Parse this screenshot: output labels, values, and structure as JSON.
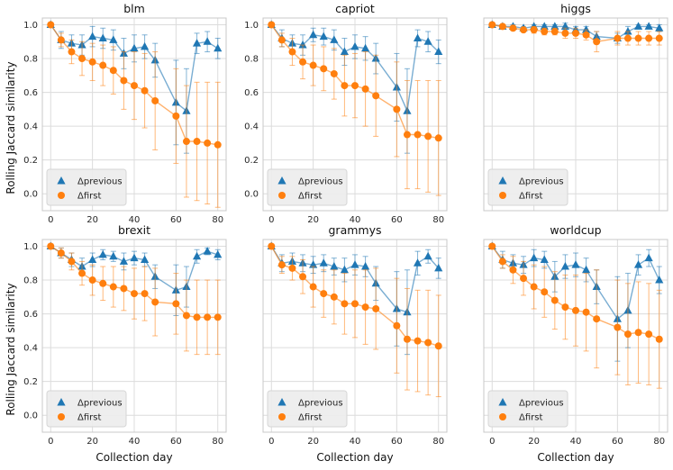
{
  "figure": {
    "xlabel": "Collection day",
    "ylabel": "Rolling Jaccard similarity",
    "colors": {
      "previous": "#1f77b4",
      "first": "#ff7f0e",
      "grid": "#dcdcdc",
      "spine": "#c8c8c8",
      "legend_bg": "#ececec"
    }
  },
  "chart_data": [
    {
      "type": "line",
      "title": "blm",
      "x": [
        0,
        5,
        10,
        15,
        20,
        25,
        30,
        35,
        40,
        45,
        50,
        60,
        65,
        70,
        75,
        80
      ],
      "xlim": [
        -4,
        84
      ],
      "ylim": [
        -0.1,
        1.04
      ],
      "xticks": [
        "0",
        "20",
        "40",
        "60",
        "80"
      ],
      "yticks": [
        "0.0",
        "0.2",
        "0.4",
        "0.6",
        "0.8",
        "1.0"
      ],
      "legend": "bottom-left",
      "series": [
        {
          "name": "Δprevious",
          "marker": "triangle",
          "values": [
            1.0,
            0.91,
            0.89,
            0.88,
            0.93,
            0.92,
            0.91,
            0.83,
            0.86,
            0.87,
            0.79,
            0.54,
            0.49,
            0.89,
            0.9,
            0.86
          ],
          "errors": [
            0.01,
            0.05,
            0.05,
            0.06,
            0.06,
            0.06,
            0.06,
            0.09,
            0.08,
            0.07,
            0.1,
            0.25,
            0.25,
            0.06,
            0.06,
            0.06
          ]
        },
        {
          "name": "Δfirst",
          "marker": "circle",
          "values": [
            1.0,
            0.91,
            0.84,
            0.8,
            0.78,
            0.76,
            0.73,
            0.67,
            0.64,
            0.61,
            0.55,
            0.46,
            0.31,
            0.31,
            0.3,
            0.29
          ],
          "errors": [
            0.01,
            0.04,
            0.07,
            0.1,
            0.11,
            0.12,
            0.14,
            0.17,
            0.2,
            0.22,
            0.29,
            0.28,
            0.33,
            0.35,
            0.36,
            0.37
          ]
        }
      ]
    },
    {
      "type": "line",
      "title": "capriot",
      "x": [
        0,
        5,
        10,
        15,
        20,
        25,
        30,
        35,
        40,
        45,
        50,
        60,
        65,
        70,
        75,
        80
      ],
      "xlim": [
        -4,
        84
      ],
      "ylim": [
        -0.1,
        1.04
      ],
      "xticks": [
        "0",
        "20",
        "40",
        "60",
        "80"
      ],
      "yticks": [
        "0.0",
        "0.2",
        "0.4",
        "0.6",
        "0.8",
        "1.0"
      ],
      "legend": "bottom-left",
      "series": [
        {
          "name": "Δprevious",
          "marker": "triangle",
          "values": [
            1.0,
            0.92,
            0.89,
            0.88,
            0.94,
            0.93,
            0.91,
            0.84,
            0.87,
            0.86,
            0.8,
            0.63,
            0.49,
            0.92,
            0.9,
            0.84
          ],
          "errors": [
            0.01,
            0.05,
            0.05,
            0.06,
            0.04,
            0.05,
            0.06,
            0.08,
            0.07,
            0.07,
            0.09,
            0.2,
            0.25,
            0.05,
            0.06,
            0.07
          ]
        },
        {
          "name": "Δfirst",
          "marker": "circle",
          "values": [
            1.0,
            0.91,
            0.84,
            0.78,
            0.76,
            0.74,
            0.71,
            0.64,
            0.64,
            0.62,
            0.58,
            0.5,
            0.35,
            0.35,
            0.34,
            0.33
          ],
          "errors": [
            0.01,
            0.04,
            0.08,
            0.1,
            0.12,
            0.13,
            0.15,
            0.18,
            0.19,
            0.22,
            0.24,
            0.28,
            0.32,
            0.32,
            0.33,
            0.34
          ]
        }
      ]
    },
    {
      "type": "line",
      "title": "higgs",
      "x": [
        0,
        5,
        10,
        15,
        20,
        25,
        30,
        35,
        40,
        45,
        50,
        60,
        65,
        70,
        75,
        80
      ],
      "xlim": [
        -4,
        84
      ],
      "ylim": [
        -0.1,
        1.04
      ],
      "xticks": [],
      "yticks": [],
      "legend": "bottom-left",
      "series": [
        {
          "name": "Δprevious",
          "marker": "triangle",
          "values": [
            1.0,
            0.99,
            0.99,
            0.98,
            0.99,
            0.99,
            0.99,
            0.99,
            0.97,
            0.97,
            0.93,
            0.92,
            0.96,
            0.99,
            0.99,
            0.98
          ],
          "errors": [
            0.01,
            0.01,
            0.01,
            0.01,
            0.01,
            0.01,
            0.01,
            0.02,
            0.02,
            0.02,
            0.03,
            0.03,
            0.03,
            0.01,
            0.01,
            0.02
          ]
        },
        {
          "name": "Δfirst",
          "marker": "circle",
          "values": [
            1.0,
            0.99,
            0.98,
            0.97,
            0.97,
            0.96,
            0.96,
            0.95,
            0.95,
            0.94,
            0.9,
            0.92,
            0.92,
            0.92,
            0.92,
            0.92
          ],
          "errors": [
            0.01,
            0.01,
            0.01,
            0.01,
            0.02,
            0.02,
            0.02,
            0.03,
            0.03,
            0.03,
            0.06,
            0.04,
            0.04,
            0.04,
            0.04,
            0.04
          ]
        }
      ]
    },
    {
      "type": "line",
      "title": "brexit",
      "x": [
        0,
        5,
        10,
        15,
        20,
        25,
        30,
        35,
        40,
        45,
        50,
        60,
        65,
        70,
        75,
        80
      ],
      "xlim": [
        -4,
        84
      ],
      "ylim": [
        -0.1,
        1.04
      ],
      "xticks": [
        "0",
        "20",
        "40",
        "60",
        "80"
      ],
      "yticks": [
        "0.0",
        "0.2",
        "0.4",
        "0.6",
        "0.8",
        "1.0"
      ],
      "legend": "bottom-left",
      "series": [
        {
          "name": "Δprevious",
          "marker": "triangle",
          "values": [
            1.0,
            0.96,
            0.92,
            0.88,
            0.92,
            0.95,
            0.94,
            0.91,
            0.93,
            0.92,
            0.82,
            0.74,
            0.76,
            0.94,
            0.97,
            0.95
          ],
          "errors": [
            0.01,
            0.03,
            0.04,
            0.05,
            0.04,
            0.03,
            0.03,
            0.05,
            0.04,
            0.04,
            0.07,
            0.15,
            0.12,
            0.04,
            0.02,
            0.03
          ]
        },
        {
          "name": "Δfirst",
          "marker": "circle",
          "values": [
            1.0,
            0.96,
            0.91,
            0.84,
            0.8,
            0.78,
            0.76,
            0.75,
            0.72,
            0.72,
            0.67,
            0.66,
            0.59,
            0.58,
            0.58,
            0.58
          ],
          "errors": [
            0.01,
            0.03,
            0.05,
            0.07,
            0.09,
            0.1,
            0.12,
            0.13,
            0.15,
            0.16,
            0.2,
            0.18,
            0.21,
            0.22,
            0.22,
            0.22
          ]
        }
      ]
    },
    {
      "type": "line",
      "title": "grammys",
      "x": [
        0,
        5,
        10,
        15,
        20,
        25,
        30,
        35,
        40,
        45,
        50,
        60,
        65,
        70,
        75,
        80
      ],
      "xlim": [
        -4,
        84
      ],
      "ylim": [
        -0.1,
        1.04
      ],
      "xticks": [
        "0",
        "20",
        "40",
        "60",
        "80"
      ],
      "yticks": [],
      "legend": "bottom-left",
      "series": [
        {
          "name": "Δprevious",
          "marker": "triangle",
          "values": [
            1.0,
            0.9,
            0.91,
            0.9,
            0.89,
            0.9,
            0.88,
            0.86,
            0.89,
            0.88,
            0.78,
            0.63,
            0.61,
            0.9,
            0.94,
            0.87
          ],
          "errors": [
            0.01,
            0.05,
            0.05,
            0.05,
            0.05,
            0.05,
            0.05,
            0.07,
            0.06,
            0.06,
            0.1,
            0.22,
            0.25,
            0.07,
            0.04,
            0.06
          ]
        },
        {
          "name": "Δfirst",
          "marker": "circle",
          "values": [
            1.0,
            0.89,
            0.87,
            0.82,
            0.76,
            0.72,
            0.7,
            0.66,
            0.66,
            0.64,
            0.63,
            0.53,
            0.45,
            0.44,
            0.43,
            0.41
          ],
          "errors": [
            0.01,
            0.05,
            0.07,
            0.1,
            0.12,
            0.14,
            0.16,
            0.18,
            0.2,
            0.22,
            0.24,
            0.28,
            0.3,
            0.3,
            0.31,
            0.3
          ]
        }
      ]
    },
    {
      "type": "line",
      "title": "worldcup",
      "x": [
        0,
        5,
        10,
        15,
        20,
        25,
        30,
        35,
        40,
        45,
        50,
        60,
        65,
        70,
        75,
        80
      ],
      "xlim": [
        -4,
        84
      ],
      "ylim": [
        -0.1,
        1.04
      ],
      "xticks": [
        "0",
        "20",
        "40",
        "60",
        "80"
      ],
      "yticks": [],
      "legend": "bottom-left",
      "series": [
        {
          "name": "Δprevious",
          "marker": "triangle",
          "values": [
            1.0,
            0.92,
            0.9,
            0.89,
            0.93,
            0.92,
            0.82,
            0.88,
            0.89,
            0.86,
            0.76,
            0.57,
            0.62,
            0.89,
            0.93,
            0.8
          ],
          "errors": [
            0.01,
            0.05,
            0.05,
            0.05,
            0.05,
            0.05,
            0.09,
            0.07,
            0.07,
            0.07,
            0.1,
            0.25,
            0.22,
            0.06,
            0.05,
            0.08
          ]
        },
        {
          "name": "Δfirst",
          "marker": "circle",
          "values": [
            1.0,
            0.91,
            0.86,
            0.81,
            0.76,
            0.73,
            0.68,
            0.64,
            0.62,
            0.61,
            0.57,
            0.52,
            0.48,
            0.49,
            0.48,
            0.45
          ],
          "errors": [
            0.01,
            0.04,
            0.08,
            0.1,
            0.13,
            0.15,
            0.17,
            0.19,
            0.21,
            0.23,
            0.29,
            0.28,
            0.3,
            0.3,
            0.3,
            0.29
          ]
        }
      ]
    }
  ]
}
